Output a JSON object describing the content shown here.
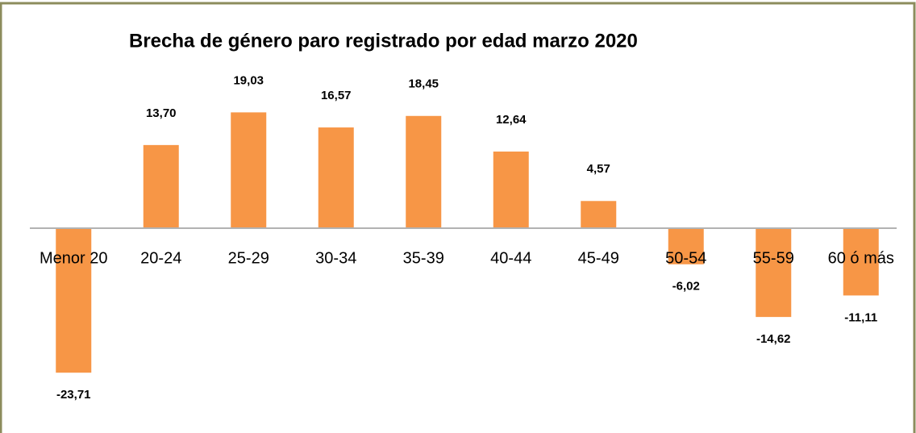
{
  "chart_data": {
    "type": "bar",
    "title": "Brecha de género paro registrado por edad marzo 2020",
    "categories": [
      "Menor 20",
      "20-24",
      "25-29",
      "30-34",
      "35-39",
      "40-44",
      "45-49",
      "50-54",
      "55-59",
      "60 ó más"
    ],
    "values": [
      -23.71,
      13.7,
      19.03,
      16.57,
      18.45,
      12.64,
      4.57,
      -6.02,
      -14.62,
      -11.11
    ],
    "value_labels": [
      "-23,71",
      "13,70",
      "19,03",
      "16,57",
      "18,45",
      "12,64",
      "4,57",
      "-6,02",
      "-14,62",
      "-11,11"
    ],
    "color": "#f79646",
    "ylim": [
      -30,
      25
    ]
  }
}
